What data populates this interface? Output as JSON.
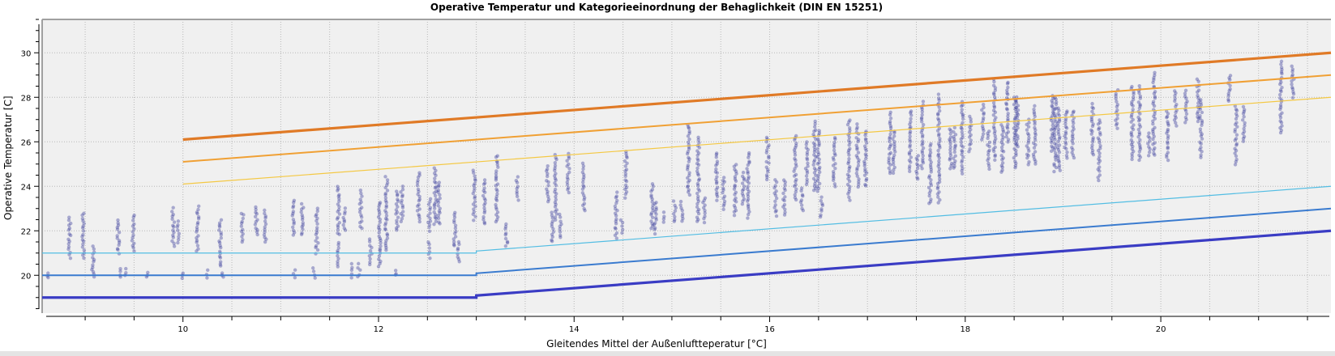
{
  "chart_data": {
    "type": "scatter",
    "title": "Operative Temperatur und Kategorieeinordnung der Behaglichkeit (DIN EN 15251)",
    "xlabel": "Gleitendes Mittel der Außenluftteperatur [°C]",
    "ylabel": "Operative Temperatur [C]",
    "xlim": [
      8.56,
      21.74
    ],
    "ylim": [
      18.3,
      31.5
    ],
    "xticks": [
      10,
      12,
      14,
      16,
      18,
      20
    ],
    "yticks": [
      20,
      22,
      24,
      26,
      28,
      30
    ],
    "grid": true,
    "legend": "none",
    "scatter_color": "#3a3d9c",
    "scatter_columns": [
      {
        "x": 8.62,
        "y": [
          19.9,
          20.1
        ]
      },
      {
        "x": 8.84,
        "y": [
          20.8,
          22.6
        ]
      },
      {
        "x": 8.98,
        "y": [
          20.8,
          22.8
        ]
      },
      {
        "x": 9.08,
        "y": [
          19.9,
          21.3
        ]
      },
      {
        "x": 9.34,
        "y": [
          21.0,
          22.5
        ]
      },
      {
        "x": 9.37,
        "y": [
          19.9,
          20.3
        ]
      },
      {
        "x": 9.41,
        "y": [
          20.0,
          20.3
        ]
      },
      {
        "x": 9.49,
        "y": [
          21.1,
          22.7
        ]
      },
      {
        "x": 9.63,
        "y": [
          19.9,
          20.1
        ]
      },
      {
        "x": 9.9,
        "y": [
          21.3,
          23.0
        ]
      },
      {
        "x": 9.95,
        "y": [
          21.5,
          22.4
        ]
      },
      {
        "x": 10.0,
        "y": [
          19.9,
          20.1
        ]
      },
      {
        "x": 10.15,
        "y": [
          21.1,
          23.1
        ]
      },
      {
        "x": 10.25,
        "y": [
          19.9,
          20.2
        ]
      },
      {
        "x": 10.38,
        "y": [
          20.4,
          22.5
        ]
      },
      {
        "x": 10.41,
        "y": [
          19.9,
          20.1
        ]
      },
      {
        "x": 10.61,
        "y": [
          21.5,
          22.8
        ]
      },
      {
        "x": 10.75,
        "y": [
          21.8,
          23.1
        ]
      },
      {
        "x": 10.84,
        "y": [
          21.5,
          22.9
        ]
      },
      {
        "x": 11.13,
        "y": [
          21.8,
          23.4
        ]
      },
      {
        "x": 11.14,
        "y": [
          19.9,
          20.2
        ]
      },
      {
        "x": 11.22,
        "y": [
          21.8,
          23.2
        ]
      },
      {
        "x": 11.34,
        "y": [
          19.9,
          20.3
        ]
      },
      {
        "x": 11.37,
        "y": [
          21.0,
          23.0
        ]
      },
      {
        "x": 11.59,
        "y": [
          21.8,
          24.0
        ]
      },
      {
        "x": 11.59,
        "y": [
          20.4,
          21.5
        ]
      },
      {
        "x": 11.65,
        "y": [
          22.0,
          23.0
        ]
      },
      {
        "x": 11.72,
        "y": [
          19.9,
          20.5
        ]
      },
      {
        "x": 11.8,
        "y": [
          19.9,
          20.5
        ]
      },
      {
        "x": 11.82,
        "y": [
          22.1,
          23.8
        ]
      },
      {
        "x": 11.92,
        "y": [
          20.5,
          21.6
        ]
      },
      {
        "x": 12.01,
        "y": [
          20.4,
          23.3
        ]
      },
      {
        "x": 12.08,
        "y": [
          21.1,
          24.4
        ]
      },
      {
        "x": 12.17,
        "y": [
          20.0,
          20.2
        ]
      },
      {
        "x": 12.19,
        "y": [
          22.0,
          23.8
        ]
      },
      {
        "x": 12.24,
        "y": [
          22.4,
          24.0
        ]
      },
      {
        "x": 12.41,
        "y": [
          22.4,
          24.6
        ]
      },
      {
        "x": 12.52,
        "y": [
          22.0,
          23.4
        ]
      },
      {
        "x": 12.52,
        "y": [
          20.8,
          21.5
        ]
      },
      {
        "x": 12.58,
        "y": [
          22.3,
          24.8
        ]
      },
      {
        "x": 12.62,
        "y": [
          22.3,
          24.2
        ]
      },
      {
        "x": 12.78,
        "y": [
          21.3,
          22.8
        ]
      },
      {
        "x": 12.82,
        "y": [
          20.6,
          21.5
        ]
      },
      {
        "x": 12.98,
        "y": [
          22.5,
          24.7
        ]
      },
      {
        "x": 13.08,
        "y": [
          22.3,
          24.3
        ]
      },
      {
        "x": 13.21,
        "y": [
          22.4,
          25.4
        ]
      },
      {
        "x": 13.31,
        "y": [
          21.3,
          22.3
        ]
      },
      {
        "x": 13.42,
        "y": [
          23.4,
          24.4
        ]
      },
      {
        "x": 13.73,
        "y": [
          23.3,
          24.9
        ]
      },
      {
        "x": 13.78,
        "y": [
          21.5,
          22.8
        ]
      },
      {
        "x": 13.81,
        "y": [
          22.5,
          25.4
        ]
      },
      {
        "x": 13.86,
        "y": [
          21.7,
          22.7
        ]
      },
      {
        "x": 13.94,
        "y": [
          23.7,
          25.5
        ]
      },
      {
        "x": 14.1,
        "y": [
          22.9,
          25.0
        ]
      },
      {
        "x": 14.43,
        "y": [
          21.7,
          23.7
        ]
      },
      {
        "x": 14.49,
        "y": [
          21.9,
          22.5
        ]
      },
      {
        "x": 14.53,
        "y": [
          23.5,
          25.6
        ]
      },
      {
        "x": 14.8,
        "y": [
          22.1,
          24.1
        ]
      },
      {
        "x": 14.83,
        "y": [
          21.9,
          23.3
        ]
      },
      {
        "x": 14.91,
        "y": [
          22.4,
          22.8
        ]
      },
      {
        "x": 15.03,
        "y": [
          22.4,
          23.3
        ]
      },
      {
        "x": 15.1,
        "y": [
          22.4,
          23.3
        ]
      },
      {
        "x": 15.17,
        "y": [
          23.6,
          26.8
        ]
      },
      {
        "x": 15.27,
        "y": [
          22.4,
          26.2
        ]
      },
      {
        "x": 15.33,
        "y": [
          22.4,
          23.5
        ]
      },
      {
        "x": 15.46,
        "y": [
          23.4,
          25.5
        ]
      },
      {
        "x": 15.53,
        "y": [
          23.0,
          24.4
        ]
      },
      {
        "x": 15.65,
        "y": [
          22.7,
          25.0
        ]
      },
      {
        "x": 15.73,
        "y": [
          23.2,
          24.6
        ]
      },
      {
        "x": 15.78,
        "y": [
          22.6,
          25.5
        ]
      },
      {
        "x": 15.98,
        "y": [
          24.3,
          26.2
        ]
      },
      {
        "x": 16.06,
        "y": [
          22.7,
          24.3
        ]
      },
      {
        "x": 16.15,
        "y": [
          22.7,
          24.3
        ]
      },
      {
        "x": 16.26,
        "y": [
          23.4,
          26.3
        ]
      },
      {
        "x": 16.33,
        "y": [
          22.9,
          23.9
        ]
      },
      {
        "x": 16.38,
        "y": [
          24.1,
          26.0
        ]
      },
      {
        "x": 16.46,
        "y": [
          23.8,
          26.9
        ]
      },
      {
        "x": 16.5,
        "y": [
          23.8,
          26.5
        ]
      },
      {
        "x": 16.53,
        "y": [
          22.6,
          23.5
        ]
      },
      {
        "x": 16.66,
        "y": [
          24.0,
          26.2
        ]
      },
      {
        "x": 16.81,
        "y": [
          23.4,
          27.0
        ]
      },
      {
        "x": 16.9,
        "y": [
          24.0,
          26.8
        ]
      },
      {
        "x": 16.98,
        "y": [
          24.0,
          26.5
        ]
      },
      {
        "x": 17.23,
        "y": [
          24.6,
          27.3
        ]
      },
      {
        "x": 17.27,
        "y": [
          24.6,
          26.5
        ]
      },
      {
        "x": 17.44,
        "y": [
          24.7,
          27.4
        ]
      },
      {
        "x": 17.51,
        "y": [
          24.3,
          25.4
        ]
      },
      {
        "x": 17.56,
        "y": [
          24.8,
          27.8
        ]
      },
      {
        "x": 17.64,
        "y": [
          23.2,
          25.9
        ]
      },
      {
        "x": 17.73,
        "y": [
          23.3,
          28.1
        ]
      },
      {
        "x": 17.85,
        "y": [
          24.8,
          26.6
        ]
      },
      {
        "x": 17.89,
        "y": [
          24.8,
          26.6
        ]
      },
      {
        "x": 17.97,
        "y": [
          24.6,
          27.8
        ]
      },
      {
        "x": 18.05,
        "y": [
          25.6,
          27.1
        ]
      },
      {
        "x": 18.18,
        "y": [
          26.1,
          27.7
        ]
      },
      {
        "x": 18.24,
        "y": [
          24.8,
          26.5
        ]
      },
      {
        "x": 18.3,
        "y": [
          25.2,
          28.8
        ]
      },
      {
        "x": 18.38,
        "y": [
          24.6,
          26.8
        ]
      },
      {
        "x": 18.43,
        "y": [
          26.0,
          28.7
        ]
      },
      {
        "x": 18.51,
        "y": [
          24.8,
          28.0
        ]
      },
      {
        "x": 18.53,
        "y": [
          25.8,
          28.0
        ]
      },
      {
        "x": 18.64,
        "y": [
          25.0,
          27.0
        ]
      },
      {
        "x": 18.71,
        "y": [
          25.0,
          27.6
        ]
      },
      {
        "x": 18.89,
        "y": [
          25.6,
          28.1
        ]
      },
      {
        "x": 18.92,
        "y": [
          24.7,
          28.0
        ]
      },
      {
        "x": 18.96,
        "y": [
          24.7,
          27.5
        ]
      },
      {
        "x": 19.03,
        "y": [
          25.3,
          27.4
        ]
      },
      {
        "x": 19.1,
        "y": [
          25.3,
          27.4
        ]
      },
      {
        "x": 19.3,
        "y": [
          25.4,
          27.7
        ]
      },
      {
        "x": 19.37,
        "y": [
          24.3,
          27.0
        ]
      },
      {
        "x": 19.55,
        "y": [
          26.6,
          28.3
        ]
      },
      {
        "x": 19.71,
        "y": [
          25.2,
          28.5
        ]
      },
      {
        "x": 19.78,
        "y": [
          25.2,
          28.5
        ]
      },
      {
        "x": 19.88,
        "y": [
          25.4,
          26.4
        ]
      },
      {
        "x": 19.93,
        "y": [
          25.4,
          29.1
        ]
      },
      {
        "x": 20.07,
        "y": [
          25.2,
          27.4
        ]
      },
      {
        "x": 20.15,
        "y": [
          26.7,
          28.3
        ]
      },
      {
        "x": 20.26,
        "y": [
          26.9,
          28.3
        ]
      },
      {
        "x": 20.38,
        "y": [
          26.9,
          28.8
        ]
      },
      {
        "x": 20.41,
        "y": [
          25.3,
          27.9
        ]
      },
      {
        "x": 20.7,
        "y": [
          27.8,
          29.0
        ]
      },
      {
        "x": 20.77,
        "y": [
          25.0,
          27.6
        ]
      },
      {
        "x": 20.85,
        "y": [
          26.0,
          27.6
        ]
      },
      {
        "x": 21.23,
        "y": [
          26.4,
          29.6
        ]
      },
      {
        "x": 21.35,
        "y": [
          28.0,
          29.4
        ]
      }
    ],
    "limit_lines": [
      {
        "color": "#e07a26",
        "points": [
          [
            10,
            26.1
          ],
          [
            21.74,
            30.0
          ]
        ]
      },
      {
        "color": "#f0a034",
        "points": [
          [
            10,
            25.1
          ],
          [
            21.74,
            29.0
          ]
        ]
      },
      {
        "color": "#f4c843",
        "points": [
          [
            10,
            24.1
          ],
          [
            21.74,
            28.0
          ]
        ]
      },
      {
        "color": "#52bde3",
        "points": [
          [
            8.56,
            21
          ],
          [
            13,
            21
          ],
          [
            13,
            21.09
          ],
          [
            21.74,
            24.0
          ]
        ]
      },
      {
        "color": "#3a7bcf",
        "points": [
          [
            8.56,
            20
          ],
          [
            13,
            20
          ],
          [
            13,
            20.09
          ],
          [
            21.74,
            23.0
          ]
        ]
      },
      {
        "color": "#3a3cc4",
        "points": [
          [
            8.56,
            19
          ],
          [
            13,
            19
          ],
          [
            13,
            19.09
          ],
          [
            21.74,
            22.0
          ]
        ]
      }
    ]
  }
}
